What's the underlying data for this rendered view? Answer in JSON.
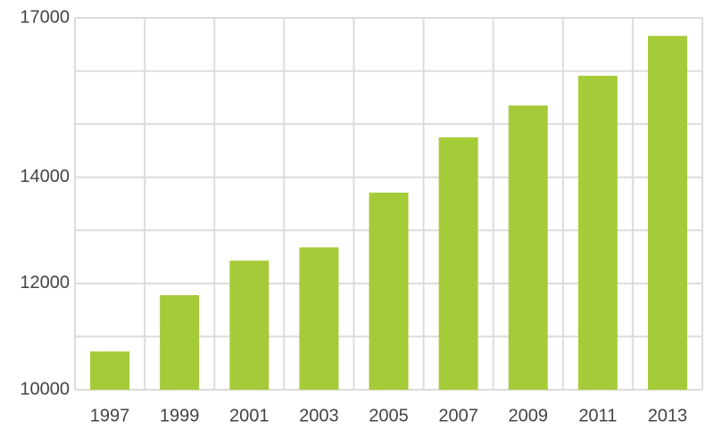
{
  "chart_data": {
    "type": "bar",
    "categories": [
      "1997",
      "1999",
      "2001",
      "2003",
      "2005",
      "2007",
      "2009",
      "2011",
      "2013"
    ],
    "values": [
      10720,
      11780,
      12430,
      12680,
      13710,
      14750,
      15350,
      15910,
      16660
    ],
    "color": "#a6cb38",
    "ylim": [
      10000,
      17000
    ],
    "yticks": [
      10000,
      12000,
      14000,
      17000
    ],
    "ygrid": [
      10000,
      11000,
      12000,
      13000,
      14000,
      15000,
      16000,
      17000
    ],
    "grid": true
  }
}
